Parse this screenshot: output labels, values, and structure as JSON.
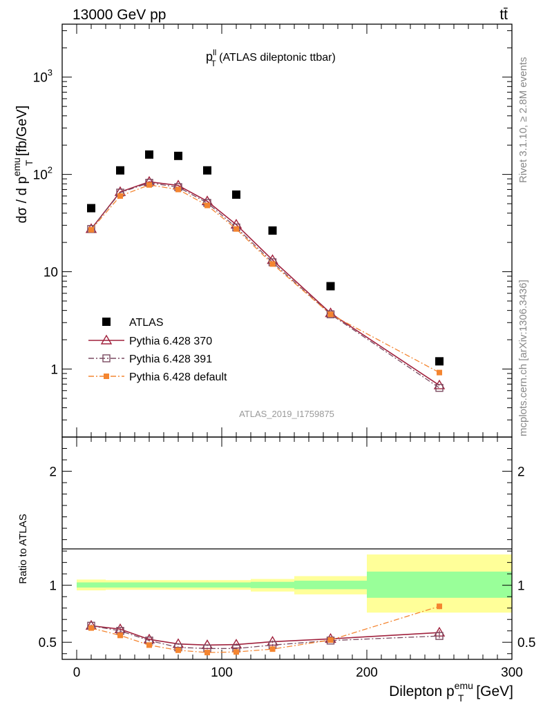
{
  "header": {
    "energy_label": "13000 GeV pp",
    "process_label": "tt̄"
  },
  "side_labels": {
    "rivet": "Rivet 3.1.10, ≥ 2.8M events",
    "mcplots": "mcplots.cern.ch [arXiv:1306.3436]"
  },
  "colors": {
    "data": "#000000",
    "p370": "#a0203c",
    "p391": "#7a4a60",
    "pdefault": "#f48530",
    "band_inner": "#99ff99",
    "band_outer": "#ffff99"
  },
  "chart_data": [
    {
      "type": "scatter",
      "panel": "main",
      "title": "p_T^ll (ATLAS dileptonic ttbar)",
      "title_parts": {
        "base": "p",
        "sup": "ll",
        "sub": "T",
        "rest": " (ATLAS dileptonic ttbar)"
      },
      "analysis_label": "ATLAS_2019_I1759875",
      "ylabel_parts": {
        "pre": "dσ / d p",
        "sup": "emu",
        "sub": "T",
        "post": " [fb/GeV]"
      },
      "yscale": "log",
      "ylim": [
        0.2,
        3500
      ],
      "xlim": [
        -10,
        300
      ],
      "yticks": [
        {
          "v": 1,
          "base": "1",
          "exp": ""
        },
        {
          "v": 10,
          "base": "10",
          "exp": ""
        },
        {
          "v": 100,
          "base": "10",
          "exp": "2"
        },
        {
          "v": 1000,
          "base": "10",
          "exp": "3"
        }
      ],
      "legend_placement": "middle-left",
      "x": [
        10,
        30,
        50,
        70,
        90,
        110,
        135,
        175,
        250
      ],
      "series": [
        {
          "name": "ATLAS",
          "key": "data",
          "marker": "square-filled",
          "values": [
            45,
            110,
            160,
            155,
            110,
            62,
            26.5,
            7.1,
            1.2
          ]
        },
        {
          "name": "Pythia 6.428 370",
          "key": "p370",
          "marker": "triangle-open",
          "line": "solid",
          "values": [
            27.5,
            66,
            84,
            77,
            53,
            30.5,
            13.2,
            3.75,
            0.68
          ]
        },
        {
          "name": "Pythia 6.428 391",
          "key": "p391",
          "marker": "square-open",
          "line": "dashdot",
          "values": [
            27.5,
            65,
            82,
            74,
            51,
            28.5,
            12.5,
            3.65,
            0.64
          ]
        },
        {
          "name": "Pythia 6.428 default",
          "key": "pdefault",
          "marker": "square-filled-small",
          "line": "dashdot",
          "values": [
            27,
            60,
            78,
            70,
            48,
            27.5,
            12,
            3.65,
            0.92
          ]
        }
      ]
    },
    {
      "type": "line",
      "panel": "ratio",
      "ylabel": "Ratio to ATLAS",
      "xlabel_parts": {
        "pre": "Dilepton p",
        "sup": "emu",
        "sub": "T",
        "post": " [GeV]"
      },
      "ylim": [
        0.35,
        2.3
      ],
      "xlim": [
        -10,
        300
      ],
      "yticks": [
        0.5,
        1,
        2
      ],
      "xticks": [
        0,
        100,
        200,
        300
      ],
      "x": [
        10,
        30,
        50,
        70,
        90,
        110,
        135,
        175,
        250
      ],
      "bands": [
        {
          "x0": 0,
          "x1": 20,
          "inner": [
            0.98,
            1.025
          ],
          "outer": [
            0.955,
            1.05
          ]
        },
        {
          "x0": 20,
          "x1": 40,
          "inner": [
            0.98,
            1.025
          ],
          "outer": [
            0.96,
            1.045
          ]
        },
        {
          "x0": 40,
          "x1": 60,
          "inner": [
            0.98,
            1.025
          ],
          "outer": [
            0.96,
            1.045
          ]
        },
        {
          "x0": 60,
          "x1": 80,
          "inner": [
            0.98,
            1.025
          ],
          "outer": [
            0.96,
            1.045
          ]
        },
        {
          "x0": 80,
          "x1": 100,
          "inner": [
            0.98,
            1.025
          ],
          "outer": [
            0.96,
            1.045
          ]
        },
        {
          "x0": 100,
          "x1": 120,
          "inner": [
            0.98,
            1.025
          ],
          "outer": [
            0.96,
            1.045
          ]
        },
        {
          "x0": 120,
          "x1": 150,
          "inner": [
            0.975,
            1.03
          ],
          "outer": [
            0.945,
            1.055
          ]
        },
        {
          "x0": 150,
          "x1": 200,
          "inner": [
            0.965,
            1.04
          ],
          "outer": [
            0.92,
            1.08
          ]
        },
        {
          "x0": 200,
          "x1": 300,
          "inner": [
            0.89,
            1.12
          ],
          "outer": [
            0.76,
            1.27
          ]
        }
      ],
      "series": [
        {
          "name": "Pythia 6.428 370",
          "key": "p370",
          "values": [
            0.645,
            0.615,
            0.525,
            0.485,
            0.475,
            0.48,
            0.505,
            0.53,
            0.585
          ],
          "errors": [
            0.01,
            0.01,
            0.008,
            0.008,
            0.008,
            0.01,
            0.01,
            0.01,
            0.02
          ]
        },
        {
          "name": "Pythia 6.428 391",
          "key": "p391",
          "values": [
            0.645,
            0.6,
            0.515,
            0.455,
            0.445,
            0.445,
            0.475,
            0.515,
            0.555
          ],
          "errors": [
            0.01,
            0.01,
            0.008,
            0.008,
            0.008,
            0.01,
            0.01,
            0.01,
            0.02
          ]
        },
        {
          "name": "Pythia 6.428 default",
          "key": "pdefault",
          "values": [
            0.625,
            0.56,
            0.475,
            0.43,
            0.41,
            0.415,
            0.44,
            0.52,
            0.815
          ],
          "errors": [
            0.01,
            0.01,
            0.008,
            0.008,
            0.008,
            0.01,
            0.01,
            0.01,
            0.025
          ]
        }
      ]
    }
  ]
}
